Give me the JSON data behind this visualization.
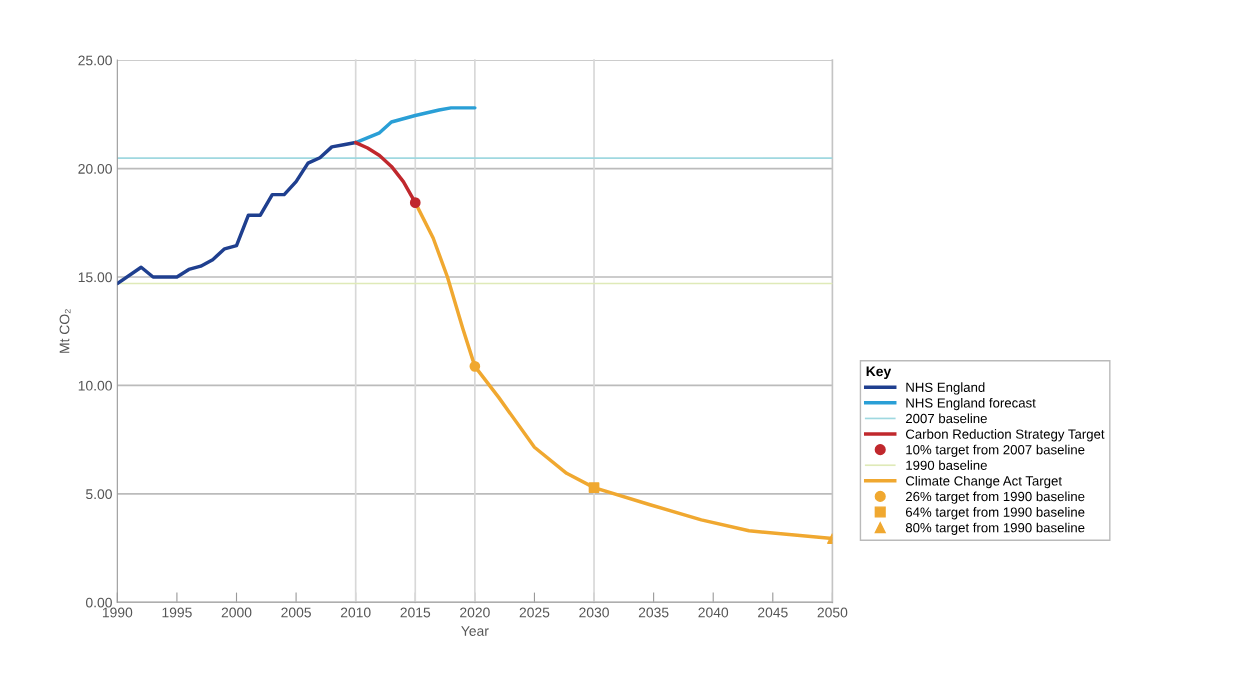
{
  "chart_data": {
    "type": "line",
    "xlabel": "Year",
    "ylabel": "Mt CO₂",
    "legend_title": "Key",
    "legend": "right",
    "grid": "y",
    "xlim": [
      1990,
      2050
    ],
    "xticks": [
      1990,
      1995,
      2000,
      2005,
      2010,
      2015,
      2020,
      2025,
      2030,
      2035,
      2040,
      2045,
      2050
    ],
    "ylim": [
      0,
      25
    ],
    "yticks": [
      {
        "value": 0,
        "label": "0.00"
      },
      {
        "value": 5,
        "label": "5.00"
      },
      {
        "value": 10,
        "label": "10.00"
      },
      {
        "value": 15,
        "label": "15.00"
      },
      {
        "value": 20,
        "label": "20.00"
      },
      {
        "value": 25,
        "label": "25.00"
      }
    ],
    "series": [
      {
        "name": "NHS England",
        "color": "#1f3f8f",
        "x": [
          1990,
          1992,
          1993,
          1995,
          1996,
          1997,
          1998,
          1999,
          2000,
          2001,
          2002,
          2003,
          2004,
          2005,
          2006,
          2007,
          2008,
          2009,
          2010
        ],
        "values": [
          14.7,
          15.45,
          15.0,
          15.0,
          15.35,
          15.5,
          15.8,
          16.3,
          16.45,
          17.85,
          17.85,
          18.8,
          18.8,
          19.4,
          20.25,
          20.5,
          21.0,
          21.1,
          21.2
        ]
      },
      {
        "name": "NHS England forecast",
        "color": "#2a9fd6",
        "x": [
          2010,
          2012,
          2013,
          2015,
          2017,
          2018,
          2020
        ],
        "values": [
          21.2,
          21.65,
          22.15,
          22.45,
          22.7,
          22.8,
          22.8
        ]
      },
      {
        "name": "2007 baseline",
        "color": "#9fd8e0",
        "x": [
          1990,
          2050
        ],
        "values": [
          20.48,
          20.48
        ]
      },
      {
        "name": "Carbon Reduction Strategy Target",
        "color": "#c0282d",
        "x": [
          2010,
          2011,
          2012,
          2013,
          2014,
          2015
        ],
        "values": [
          21.2,
          20.95,
          20.6,
          20.1,
          19.4,
          18.43
        ]
      },
      {
        "name": "10% target from 2007 baseline",
        "type": "scatter",
        "marker": "circle",
        "color": "#c0282d",
        "x": [
          2015
        ],
        "values": [
          18.43
        ]
      },
      {
        "name": "1990 baseline",
        "color": "#dfeab8",
        "x": [
          1990,
          2050
        ],
        "values": [
          14.7,
          14.7
        ]
      },
      {
        "name": "Climate Change Act Target",
        "color": "#f0a830",
        "x": [
          2015,
          2016.5,
          2017.7,
          2019,
          2020,
          2022,
          2025,
          2027.7,
          2030,
          2034.7,
          2039,
          2043,
          2050
        ],
        "values": [
          18.43,
          16.8,
          15.0,
          12.6,
          10.88,
          9.45,
          7.15,
          5.95,
          5.29,
          4.5,
          3.8,
          3.3,
          2.94
        ]
      },
      {
        "name": "26% target from 1990 baseline",
        "type": "scatter",
        "marker": "circle",
        "color": "#f0a830",
        "x": [
          2020
        ],
        "values": [
          10.88
        ]
      },
      {
        "name": "64% target from 1990 baseline",
        "type": "scatter",
        "marker": "square",
        "color": "#f0a830",
        "x": [
          2030
        ],
        "values": [
          5.29
        ]
      },
      {
        "name": "80% target from 1990 baseline",
        "type": "scatter",
        "marker": "triangle",
        "color": "#f0a830",
        "x": [
          2050
        ],
        "values": [
          2.94
        ]
      }
    ],
    "ref_lines": [
      {
        "axis": "x",
        "value": 2010,
        "color": "#d8d8d8"
      },
      {
        "axis": "x",
        "value": 2015,
        "color": "#d8d8d8"
      },
      {
        "axis": "x",
        "value": 2020,
        "color": "#d8d8d8"
      },
      {
        "axis": "x",
        "value": 2030,
        "color": "#d8d8d8"
      },
      {
        "axis": "x",
        "value": 2050,
        "color": "#c4c4c4"
      }
    ]
  }
}
